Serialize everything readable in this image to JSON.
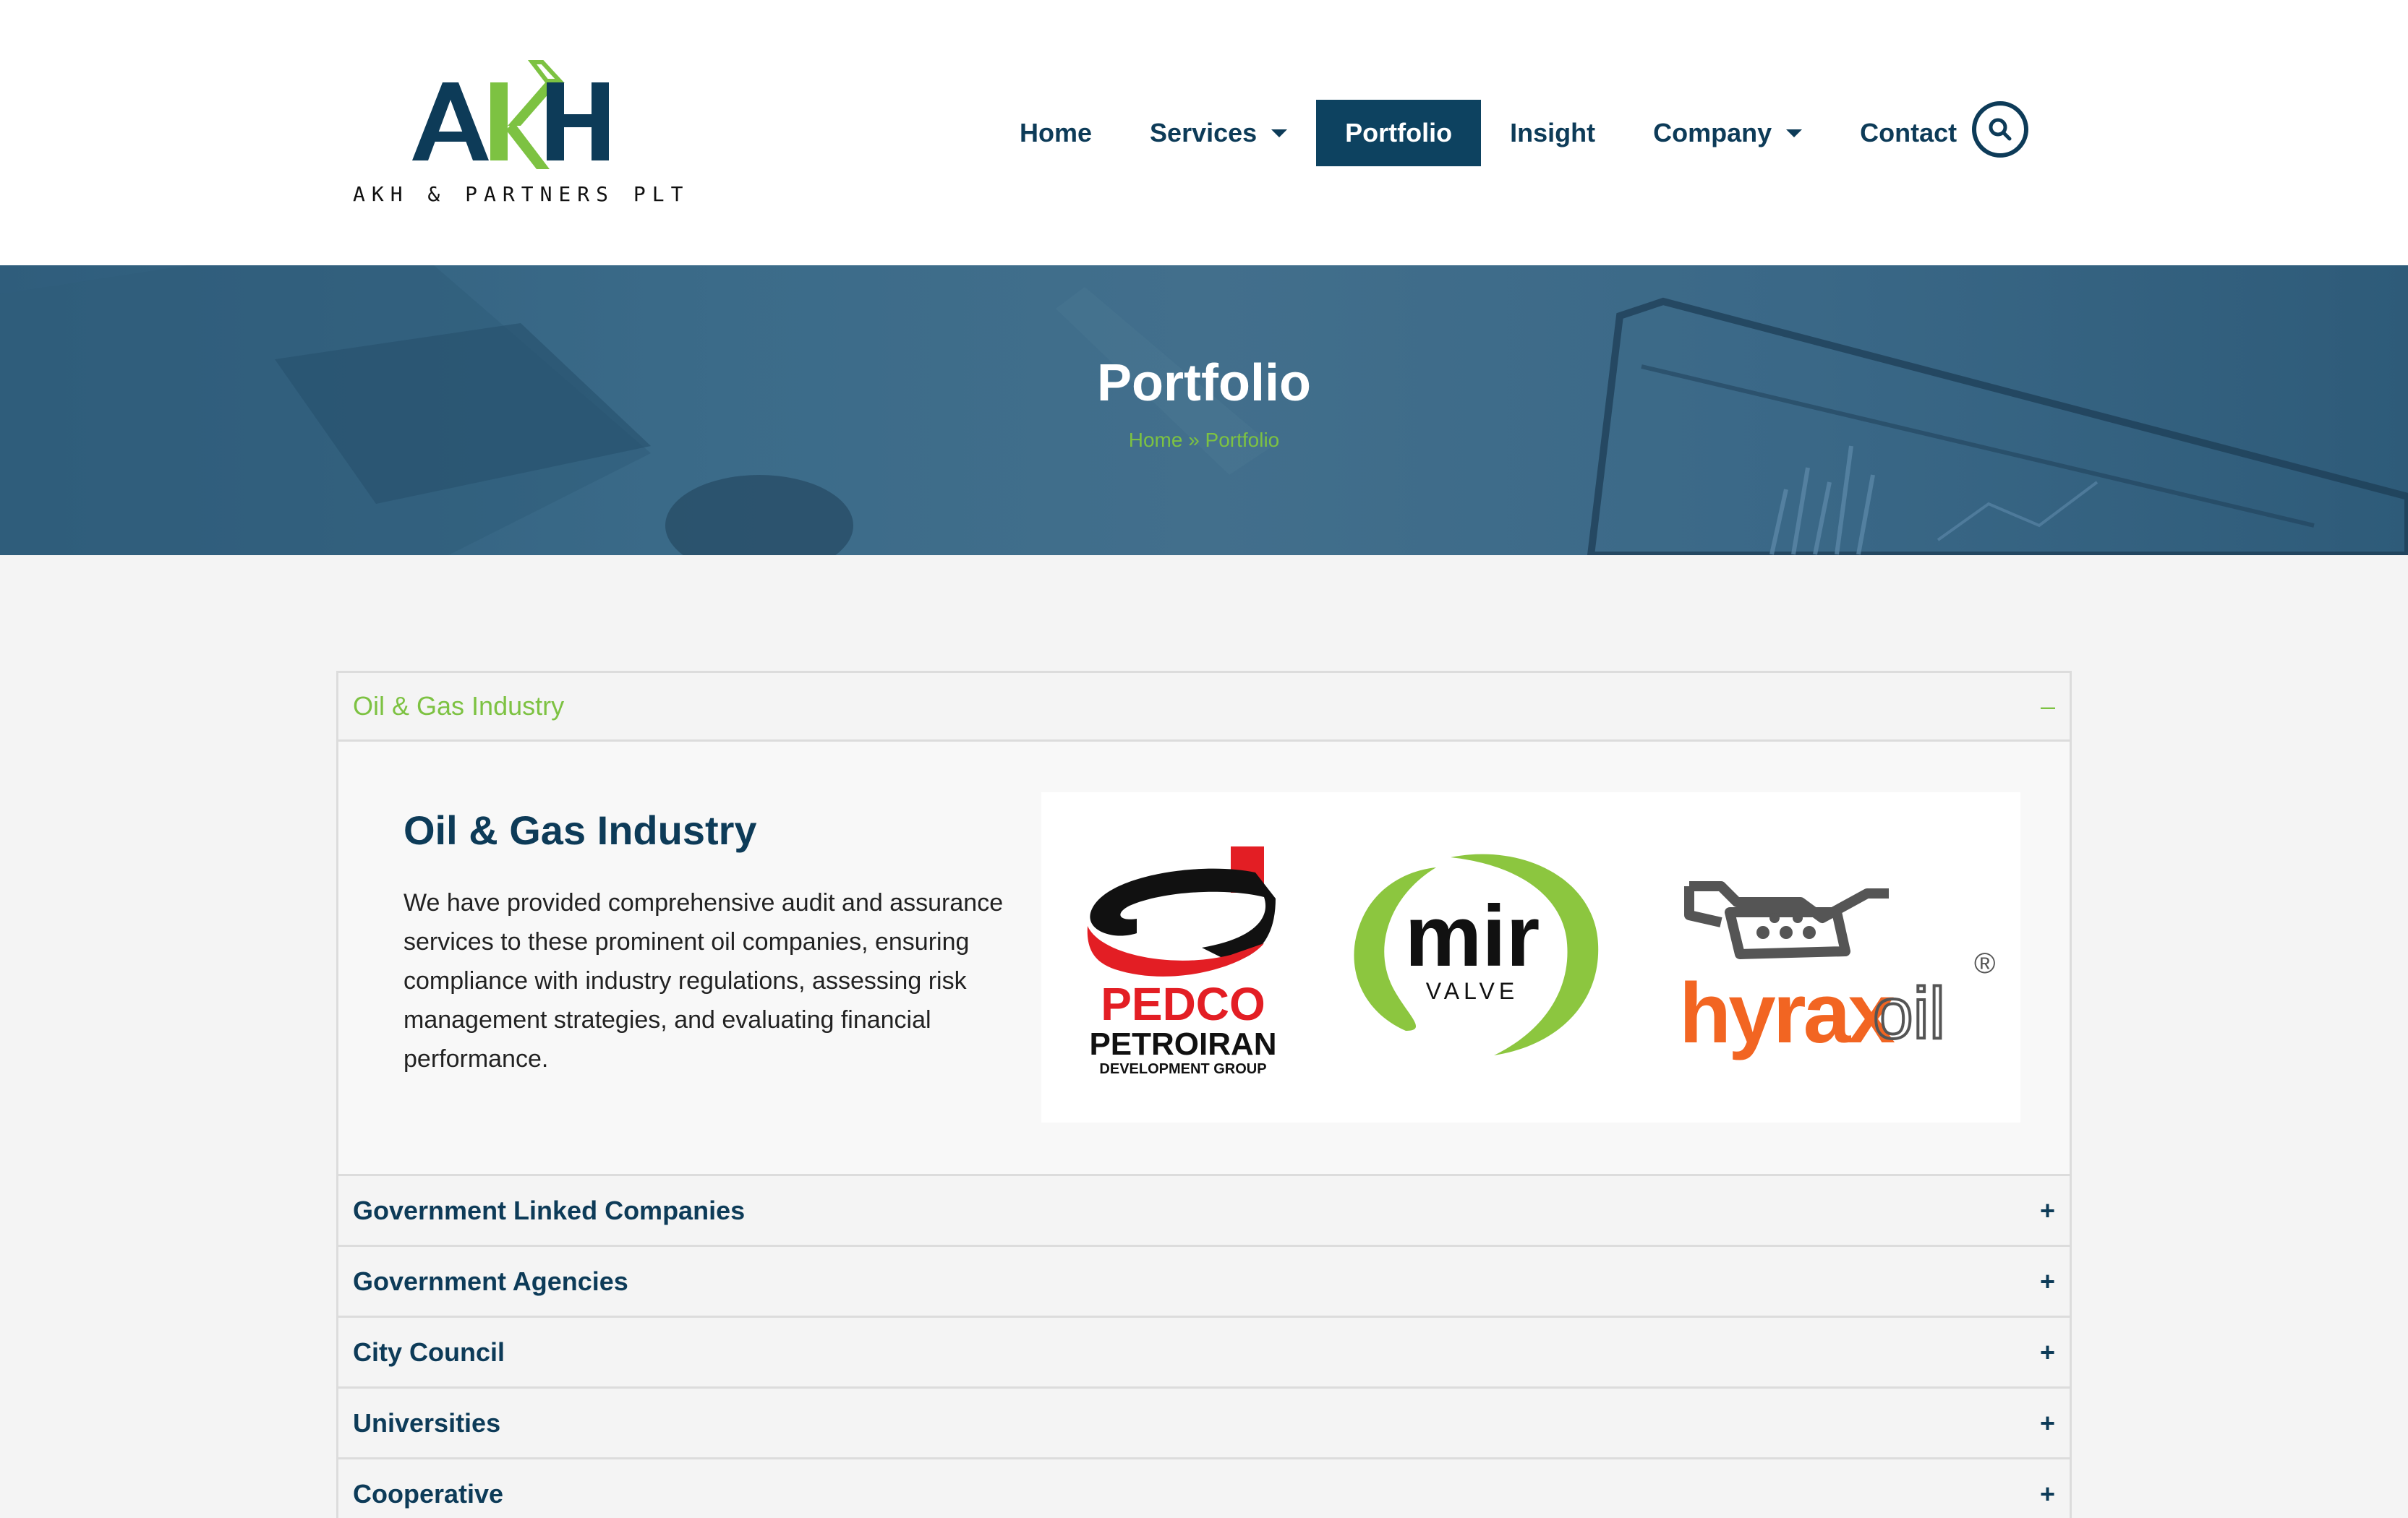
{
  "brand": {
    "logo_letters": "AKH",
    "name": "AKH & PARTNERS PLT"
  },
  "nav": {
    "items": [
      {
        "label": "Home",
        "dropdown": false,
        "active": false
      },
      {
        "label": "Services",
        "dropdown": true,
        "active": false
      },
      {
        "label": "Portfolio",
        "dropdown": false,
        "active": true
      },
      {
        "label": "Insight",
        "dropdown": false,
        "active": false
      },
      {
        "label": "Company",
        "dropdown": true,
        "active": false
      },
      {
        "label": "Contact",
        "dropdown": false,
        "active": false
      }
    ],
    "search_icon": "search-icon"
  },
  "hero": {
    "title": "Portfolio",
    "breadcrumb": "Home » Portfolio"
  },
  "accordion": {
    "open_section": {
      "label": "Oil & Gas Industry",
      "sign": "–",
      "heading": "Oil & Gas Industry",
      "text": "We have provided comprehensive audit and assurance services to these prominent oil companies, ensuring compliance with industry regulations, assessing risk management strategies, and evaluating financial performance.",
      "logos": [
        {
          "name": "PEDCO",
          "line2": "PETROIRAN",
          "line3": "DEVELOPMENT GROUP"
        },
        {
          "name": "mir",
          "line2": "VALVE"
        },
        {
          "name": "hyrax",
          "line2": "oil",
          "mark": "®"
        }
      ]
    },
    "sections": [
      {
        "label": "Government Linked Companies",
        "sign": "+"
      },
      {
        "label": "Government Agencies",
        "sign": "+"
      },
      {
        "label": "City Council",
        "sign": "+"
      },
      {
        "label": "Universities",
        "sign": "+"
      },
      {
        "label": "Cooperative",
        "sign": "+"
      }
    ]
  },
  "colors": {
    "navy": "#0d3b58",
    "green": "#7dc242",
    "hero": "#3b6b89",
    "pedco_red": "#e31e24",
    "hyrax_orange": "#f26522"
  }
}
